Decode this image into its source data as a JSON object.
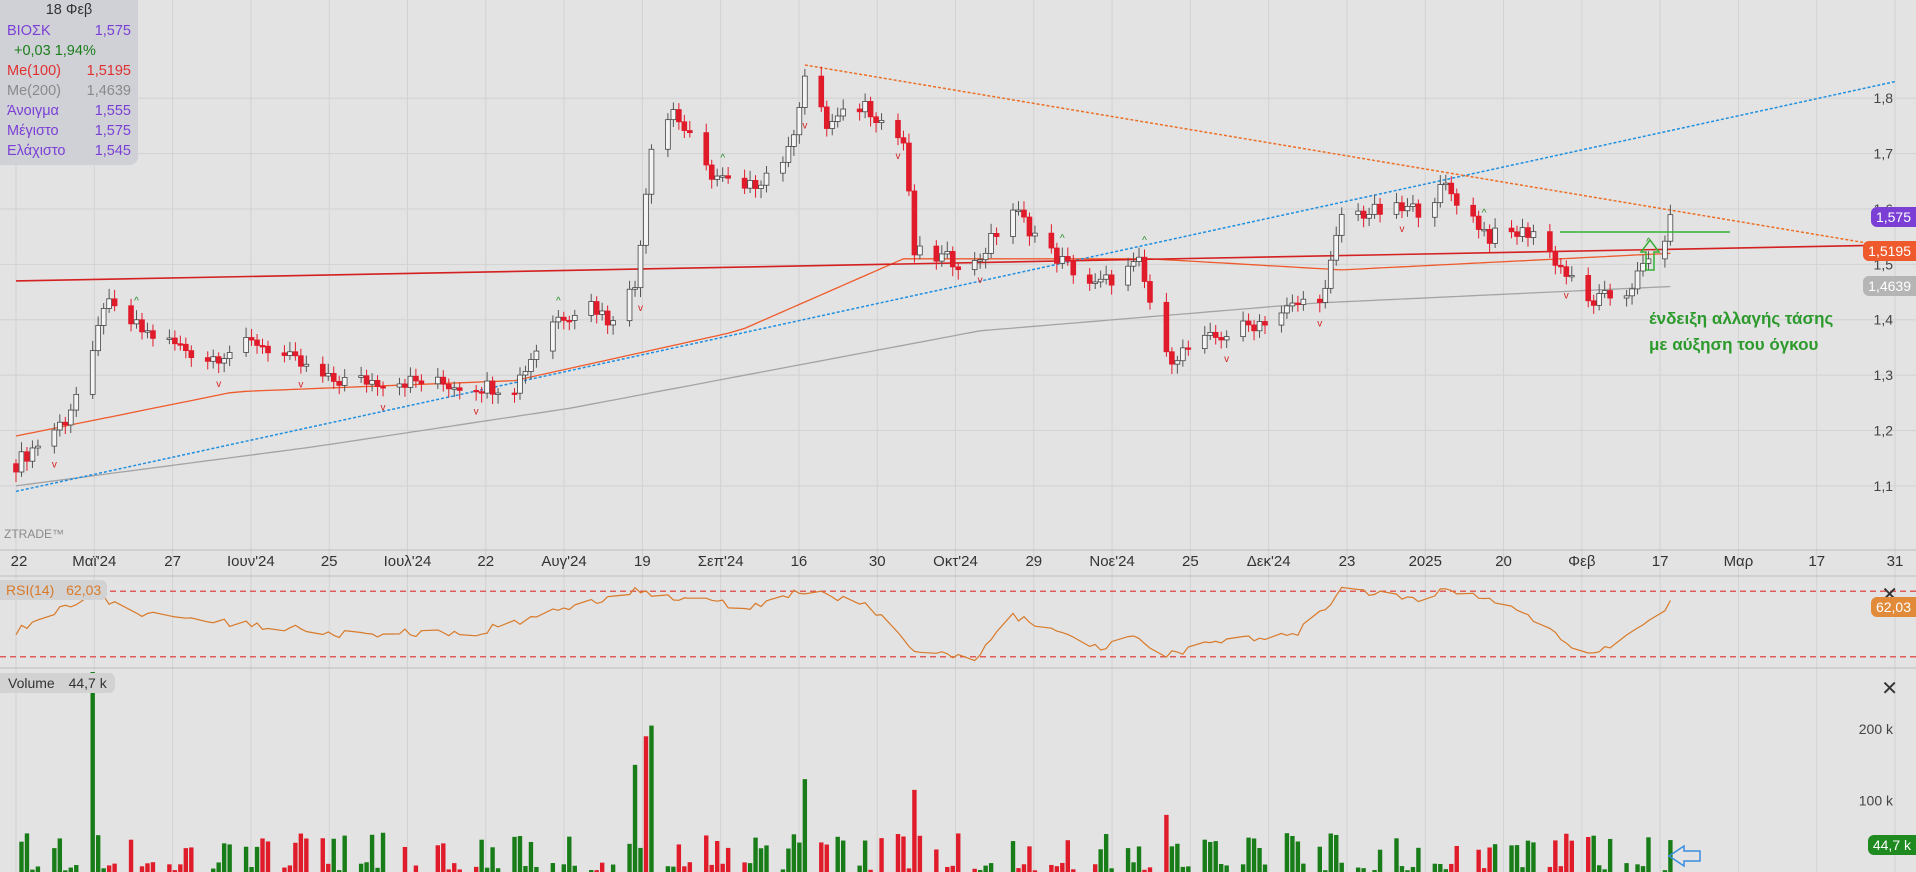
{
  "info": {
    "date": "18 Φεβ",
    "symbol": "ΒΙΟΣΚ",
    "price": "1,575",
    "change": "+0,03 1,94%",
    "ma100_label": "Me(100)",
    "ma100": "1,5195",
    "ma200_label": "Me(200)",
    "ma200": "1,4639",
    "open_label": "Άνοιγμα",
    "open": "1,555",
    "high_label": "Μέγιστο",
    "high": "1,575",
    "low_label": "Ελάχιστο",
    "low": "1,545"
  },
  "watermark": "ZTRADE™",
  "price_tags": {
    "price": "1,575",
    "ma100": "1,5195",
    "ma200": "1,4639"
  },
  "rsi": {
    "label": "RSI(14)",
    "value": "62,03",
    "tag": "62,03"
  },
  "volume": {
    "label": "Volume",
    "value": "44,7 k",
    "tag": "44,7 k"
  },
  "annotation": {
    "line1": "ένδειξη αλλαγής τάσης",
    "line2": "με αύξηση του όγκου"
  },
  "colors": {
    "up": "#187d18",
    "down": "#e01b2a",
    "ma100": "#ef5a2c",
    "ma200": "#a4a4a4",
    "trend_blue": "#1f8fe0",
    "trend_orange": "#ec6f25",
    "support_red": "#d42020",
    "rsi": "#d87a2a",
    "price_tag": "#7b3fd6"
  },
  "chart_data": [
    {
      "type": "candlestick",
      "title": "ΒΙΟΣΚ",
      "x_tick_labels": [
        "22",
        "Μαϊ'24",
        "27",
        "Ιουν'24",
        "25",
        "Ιουλ'24",
        "22",
        "Αυγ'24",
        "19",
        "Σεπ'24",
        "16",
        "30",
        "Οκτ'24",
        "29",
        "Νοε'24",
        "25",
        "Δεκ'24",
        "23",
        "2025",
        "20",
        "Φεβ",
        "17",
        "Μαρ",
        "17",
        "31"
      ],
      "y_ticks": [
        "1,1",
        "1,2",
        "1,3",
        "1,4",
        "1,5",
        "1,6",
        "1,7",
        "1,8"
      ],
      "ylim": [
        1.06,
        1.86
      ],
      "close_path": [
        [
          "2024-04-22",
          1.14
        ],
        [
          "2024-05-01",
          1.22
        ],
        [
          "2024-05-06",
          1.33
        ],
        [
          "2024-05-08",
          1.43
        ],
        [
          "2024-05-15",
          1.38
        ],
        [
          "2024-05-27",
          1.33
        ],
        [
          "2024-06-05",
          1.36
        ],
        [
          "2024-06-18",
          1.29
        ],
        [
          "2024-07-01",
          1.29
        ],
        [
          "2024-07-15",
          1.28
        ],
        [
          "2024-07-22",
          1.28
        ],
        [
          "2024-07-29",
          1.4
        ],
        [
          "2024-08-05",
          1.43
        ],
        [
          "2024-08-08",
          1.4
        ],
        [
          "2024-08-13",
          1.46
        ],
        [
          "2024-08-16",
          1.72
        ],
        [
          "2024-08-20",
          1.78
        ],
        [
          "2024-08-26",
          1.67
        ],
        [
          "2024-09-02",
          1.63
        ],
        [
          "2024-09-10",
          1.7
        ],
        [
          "2024-09-13",
          1.84
        ],
        [
          "2024-09-17",
          1.75
        ],
        [
          "2024-09-24",
          1.79
        ],
        [
          "2024-10-01",
          1.72
        ],
        [
          "2024-10-03",
          1.52
        ],
        [
          "2024-10-14",
          1.5
        ],
        [
          "2024-10-21",
          1.6
        ],
        [
          "2024-10-28",
          1.52
        ],
        [
          "2024-11-05",
          1.46
        ],
        [
          "2024-11-13",
          1.5
        ],
        [
          "2024-11-18",
          1.33
        ],
        [
          "2024-11-25",
          1.36
        ],
        [
          "2024-12-06",
          1.4
        ],
        [
          "2024-12-17",
          1.45
        ],
        [
          "2024-12-20",
          1.59
        ],
        [
          "2025-01-03",
          1.6
        ],
        [
          "2025-01-08",
          1.64
        ],
        [
          "2025-01-16",
          1.55
        ],
        [
          "2025-01-24",
          1.56
        ],
        [
          "2025-02-03",
          1.43
        ],
        [
          "2025-02-10",
          1.45
        ],
        [
          "2025-02-17",
          1.55
        ],
        [
          "2025-02-18",
          1.575
        ]
      ],
      "ma100_path": [
        [
          "2024-04-22",
          1.19
        ],
        [
          "2024-06-01",
          1.27
        ],
        [
          "2024-07-22",
          1.29
        ],
        [
          "2024-09-01",
          1.38
        ],
        [
          "2024-10-01",
          1.51
        ],
        [
          "2024-11-15",
          1.51
        ],
        [
          "2024-12-20",
          1.49
        ],
        [
          "2025-02-18",
          1.52
        ]
      ],
      "ma200_path": [
        [
          "2024-04-22",
          1.1
        ],
        [
          "2024-06-15",
          1.17
        ],
        [
          "2024-08-01",
          1.24
        ],
        [
          "2024-10-15",
          1.38
        ],
        [
          "2024-12-15",
          1.43
        ],
        [
          "2025-02-18",
          1.46
        ]
      ],
      "lines": [
        {
          "name": "",
          "from": [
            "2024-04-22",
            1.09
          ],
          "to": [
            "2025-03-31",
            1.83
          ]
        },
        {
          "name": "",
          "from": [
            "2024-09-13",
            1.86
          ],
          "to": [
            "2025-03-31",
            1.53
          ]
        },
        {
          "name": "",
          "from": [
            "2024-04-22",
            1.47
          ],
          "to": [
            "2025-03-31",
            1.535
          ]
        }
      ]
    },
    {
      "type": "line",
      "title": "RSI(14)",
      "value": 62.03,
      "levels": [
        70,
        30
      ],
      "ylim": [
        25,
        75
      ],
      "points": [
        [
          "2024-04-22",
          46
        ],
        [
          "2024-05-06",
          68
        ],
        [
          "2024-05-15",
          56
        ],
        [
          "2024-06-03",
          50
        ],
        [
          "2024-06-20",
          44
        ],
        [
          "2024-07-15",
          45
        ],
        [
          "2024-08-13",
          71
        ],
        [
          "2024-08-20",
          67
        ],
        [
          "2024-09-02",
          60
        ],
        [
          "2024-09-13",
          70
        ],
        [
          "2024-09-24",
          63
        ],
        [
          "2024-10-03",
          34
        ],
        [
          "2024-10-14",
          30
        ],
        [
          "2024-10-21",
          55
        ],
        [
          "2024-11-05",
          35
        ],
        [
          "2024-11-13",
          42
        ],
        [
          "2024-11-18",
          30
        ],
        [
          "2024-11-25",
          39
        ],
        [
          "2024-12-12",
          45
        ],
        [
          "2024-12-20",
          70
        ],
        [
          "2025-01-03",
          66
        ],
        [
          "2025-01-08",
          71
        ],
        [
          "2025-01-20",
          60
        ],
        [
          "2025-02-03",
          31
        ],
        [
          "2025-02-10",
          43
        ],
        [
          "2025-02-18",
          62
        ]
      ]
    },
    {
      "type": "bar",
      "title": "Volume",
      "value_k": 44.7,
      "y_ticks": [
        "100 k",
        "200 k"
      ],
      "ylim": [
        0,
        280
      ],
      "peaks": [
        [
          "2024-05-06",
          280,
          "up"
        ],
        [
          "2024-08-13",
          150,
          "up"
        ],
        [
          "2024-08-15",
          190,
          "down"
        ],
        [
          "2024-08-16",
          205,
          "up"
        ],
        [
          "2024-09-13",
          130,
          "up"
        ],
        [
          "2024-10-03",
          115,
          "down"
        ],
        [
          "2024-11-18",
          80,
          "down"
        ],
        [
          "2025-02-18",
          44.7,
          "up"
        ]
      ]
    }
  ]
}
